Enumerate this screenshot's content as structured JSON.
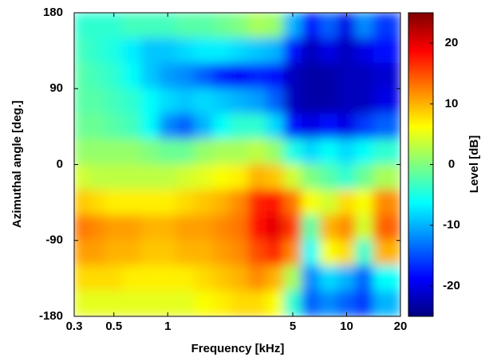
{
  "chart_data": {
    "type": "heatmap",
    "xlabel": "Frequency [kHz]",
    "ylabel": "Azimuthal angle [deg.]",
    "colorbar_label": "Level [dB]",
    "xscale": "log",
    "xlim": [
      0.3,
      20
    ],
    "xticks": [
      0.3,
      0.5,
      1,
      5,
      10,
      20
    ],
    "ylim": [
      -180,
      180
    ],
    "yticks": [
      180,
      90,
      0,
      -90,
      -180
    ],
    "clim": [
      -25,
      25
    ],
    "cticks": [
      20,
      10,
      0,
      -10,
      -20
    ],
    "colormap": "jet",
    "x": [
      0.33,
      0.4,
      0.5,
      0.63,
      0.8,
      1,
      1.25,
      1.6,
      2,
      2.5,
      3.2,
      4,
      5,
      6.3,
      8,
      10,
      12.5,
      16
    ],
    "y": [
      165,
      135,
      105,
      75,
      45,
      15,
      -15,
      -45,
      -75,
      -105,
      -135,
      -165
    ],
    "z": [
      [
        -4,
        -4,
        -4,
        -3,
        -3,
        -3,
        -2,
        -2,
        -1,
        0,
        2,
        1,
        -10,
        -18,
        -14,
        -20,
        -12,
        -16
      ],
      [
        -3,
        -4,
        -5,
        -7,
        -9,
        -9,
        -8,
        -7,
        -7,
        -8,
        -9,
        -10,
        -18,
        -22,
        -20,
        -22,
        -20,
        -18
      ],
      [
        -2,
        -3,
        -4,
        -6,
        -9,
        -11,
        -12,
        -14,
        -17,
        -19,
        -17,
        -18,
        -22,
        -23,
        -23,
        -22,
        -22,
        -21
      ],
      [
        -2,
        -2,
        -3,
        -4,
        -6,
        -8,
        -9,
        -8,
        -9,
        -10,
        -11,
        -14,
        -22,
        -23,
        -23,
        -22,
        -22,
        -20
      ],
      [
        -1,
        -1,
        -2,
        -3,
        -6,
        -12,
        -14,
        -10,
        -6,
        -4,
        -4,
        -8,
        -18,
        -20,
        -18,
        -20,
        -16,
        -14
      ],
      [
        1,
        1,
        1,
        1,
        0,
        -1,
        -1,
        1,
        2,
        2,
        3,
        1,
        -5,
        -8,
        -6,
        -8,
        -6,
        -4
      ],
      [
        4,
        3,
        3,
        3,
        3,
        3,
        4,
        5,
        6,
        7,
        10,
        9,
        4,
        0,
        -2,
        -4,
        -1,
        2
      ],
      [
        9,
        8,
        7,
        7,
        7,
        7,
        8,
        9,
        10,
        12,
        17,
        18,
        13,
        6,
        4,
        8,
        6,
        12
      ],
      [
        13,
        12,
        11,
        11,
        10,
        10,
        11,
        11,
        12,
        13,
        18,
        20,
        16,
        -2,
        10,
        12,
        4,
        14
      ],
      [
        11,
        11,
        10,
        10,
        9,
        9,
        10,
        10,
        11,
        12,
        15,
        17,
        12,
        -6,
        6,
        8,
        -4,
        10
      ],
      [
        8,
        8,
        8,
        7,
        7,
        7,
        7,
        8,
        9,
        10,
        12,
        10,
        2,
        -12,
        -8,
        -10,
        -14,
        -6
      ],
      [
        5,
        5,
        5,
        5,
        5,
        5,
        5,
        6,
        7,
        8,
        8,
        6,
        -4,
        -14,
        -12,
        -14,
        -16,
        -10
      ]
    ]
  }
}
